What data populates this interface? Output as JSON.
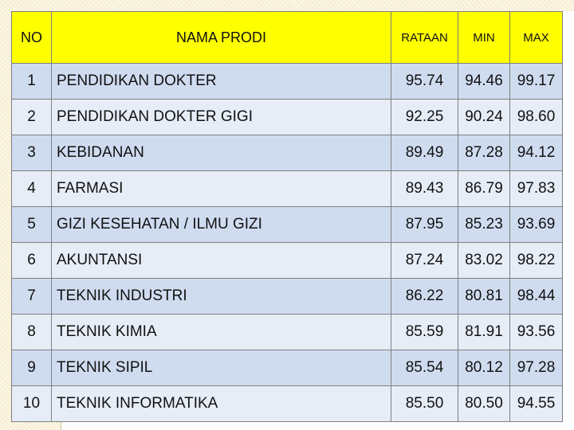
{
  "header": {
    "no": "NO",
    "nama_prodi": "NAMA PRODI",
    "rataan": "RATAAN",
    "min": "MIN",
    "max": "MAX"
  },
  "rows": [
    {
      "no": "1",
      "prodi": "PENDIDIKAN DOKTER",
      "rataan": "95.74",
      "min": "94.46",
      "max": "99.17"
    },
    {
      "no": "2",
      "prodi": "PENDIDIKAN DOKTER GIGI",
      "rataan": "92.25",
      "min": "90.24",
      "max": "98.60"
    },
    {
      "no": "3",
      "prodi": "KEBIDANAN",
      "rataan": "89.49",
      "min": "87.28",
      "max": "94.12"
    },
    {
      "no": "4",
      "prodi": "FARMASI",
      "rataan": "89.43",
      "min": "86.79",
      "max": "97.83"
    },
    {
      "no": "5",
      "prodi": "GIZI KESEHATAN / ILMU GIZI",
      "rataan": "87.95",
      "min": "85.23",
      "max": "93.69"
    },
    {
      "no": "6",
      "prodi": "AKUNTANSI",
      "rataan": "87.24",
      "min": "83.02",
      "max": "98.22"
    },
    {
      "no": "7",
      "prodi": "TEKNIK INDUSTRI",
      "rataan": "86.22",
      "min": "80.81",
      "max": "98.44"
    },
    {
      "no": "8",
      "prodi": "TEKNIK KIMIA",
      "rataan": "85.59",
      "min": "81.91",
      "max": "93.56"
    },
    {
      "no": "9",
      "prodi": "TEKNIK SIPIL",
      "rataan": "85.54",
      "min": "80.12",
      "max": "97.28"
    },
    {
      "no": "10",
      "prodi": "TEKNIK INFORMATIKA",
      "rataan": "85.50",
      "min": "80.50",
      "max": "94.55"
    }
  ],
  "colors": {
    "header_bg": "#ffff00",
    "row_odd_bg": "#cfdcf0",
    "row_even_bg": "#e7edf7",
    "border": "#7f7f7f"
  }
}
